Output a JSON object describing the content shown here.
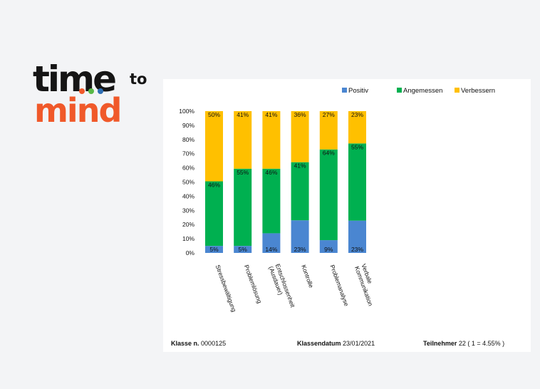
{
  "logo": {
    "line1": "time",
    "superscript": "to",
    "line2": "mind",
    "colors": {
      "dark": "#151515",
      "orange": "#f0592a",
      "dot_orange": "#f0592a",
      "dot_green": "#59b947",
      "dot_blue": "#2f6fb5"
    }
  },
  "chart_data": {
    "type": "bar",
    "stacked": true,
    "percent": true,
    "categories": [
      "Stressbewältigung",
      "Problemlösung",
      "Entschlossenheit (Ausdauer)",
      "Kontrolle",
      "Problemanalyse",
      "Verbale Kommunikation"
    ],
    "category_lines": [
      [
        "Stressbewältigung"
      ],
      [
        "Problemlösung"
      ],
      [
        "Entschlossenheit",
        "(Ausdauer)"
      ],
      [
        "Kontrolle"
      ],
      [
        "Problemanalyse"
      ],
      [
        "Verbale",
        "Kommunikation"
      ]
    ],
    "series": [
      {
        "name": "Positiv",
        "color": "#4a86d1",
        "values": [
          5,
          5,
          14,
          23,
          9,
          23
        ],
        "labels": [
          "5%",
          "5%",
          "14%",
          "23%",
          "9%",
          "23%"
        ]
      },
      {
        "name": "Angemessen",
        "color": "#00b050",
        "values": [
          46,
          55,
          46,
          41,
          64,
          55
        ],
        "labels": [
          "46%",
          "55%",
          "46%",
          "41%",
          "64%",
          "55%"
        ]
      },
      {
        "name": "Verbessern",
        "color": "#ffc000",
        "values": [
          50,
          41,
          41,
          36,
          27,
          23
        ],
        "labels": [
          "50%",
          "41%",
          "41%",
          "36%",
          "27%",
          "23%"
        ]
      }
    ],
    "ylim": [
      0,
      100
    ],
    "yticks": [
      "0%",
      "10%",
      "20%",
      "30%",
      "40%",
      "50%",
      "60%",
      "70%",
      "80%",
      "90%",
      "100%"
    ],
    "grid": false,
    "legend_position": "top-right"
  },
  "footer": {
    "klasse_label": "Klasse n.",
    "klasse_value": "0000125",
    "datum_label": "Klassendatum",
    "datum_value": "23/01/2021",
    "teilnehmer_label": "Teilnehmer",
    "teilnehmer_value": "22 ( 1 = 4.55% )"
  }
}
